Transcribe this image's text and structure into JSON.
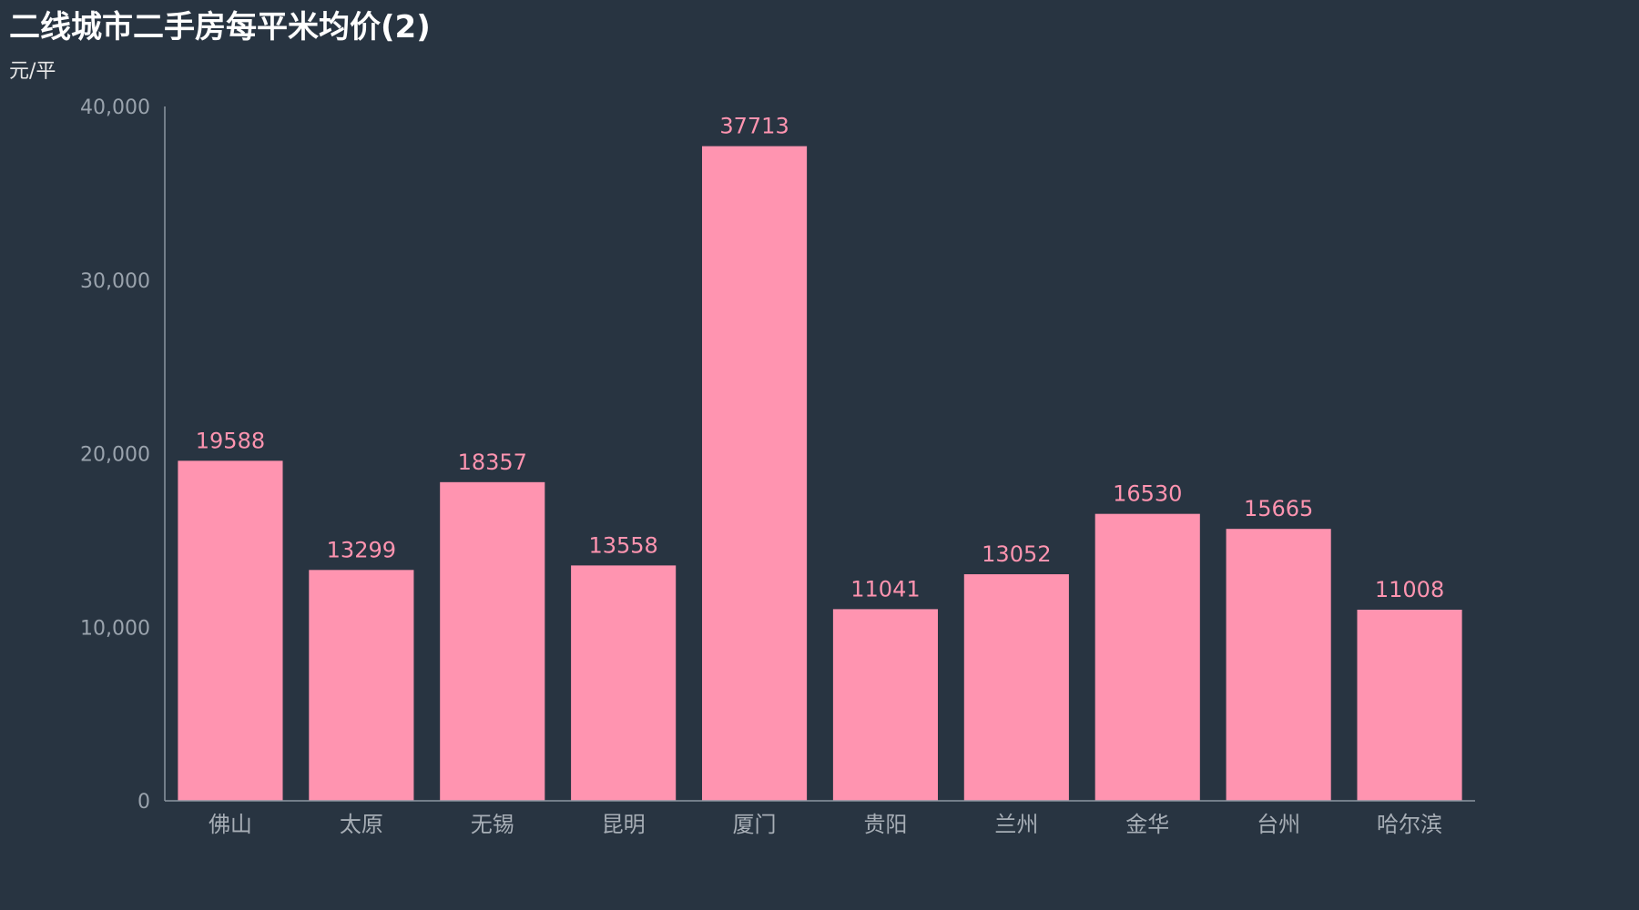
{
  "chart_data": {
    "type": "bar",
    "title": "二线城市二手房每平米均价(2)",
    "unit_label": "元/平",
    "categories": [
      "佛山",
      "太原",
      "无锡",
      "昆明",
      "厦门",
      "贵阳",
      "兰州",
      "金华",
      "台州",
      "哈尔滨"
    ],
    "values": [
      19588,
      13299,
      18357,
      13558,
      37713,
      11041,
      13052,
      16530,
      15665,
      11008
    ],
    "value_labels": [
      "19588",
      "13299",
      "18357",
      "13558",
      "37713",
      "11041",
      "13052",
      "16530",
      "15665",
      "11008"
    ],
    "ylim": [
      0,
      40000
    ],
    "y_ticks": [
      0,
      10000,
      20000,
      30000,
      40000
    ],
    "y_tick_labels": [
      "0",
      "10,000",
      "20,000",
      "30,000",
      "40,000"
    ],
    "xlabel": "",
    "ylabel": "",
    "grid": false,
    "data_labels_position": "top"
  },
  "colors": {
    "background": "#283441",
    "bar": "#ff94b0",
    "data_label": "#ff94b0",
    "axis_line": "#8c96a1",
    "tick_text": "#9aa3ad",
    "title_text": "#ffffff"
  }
}
